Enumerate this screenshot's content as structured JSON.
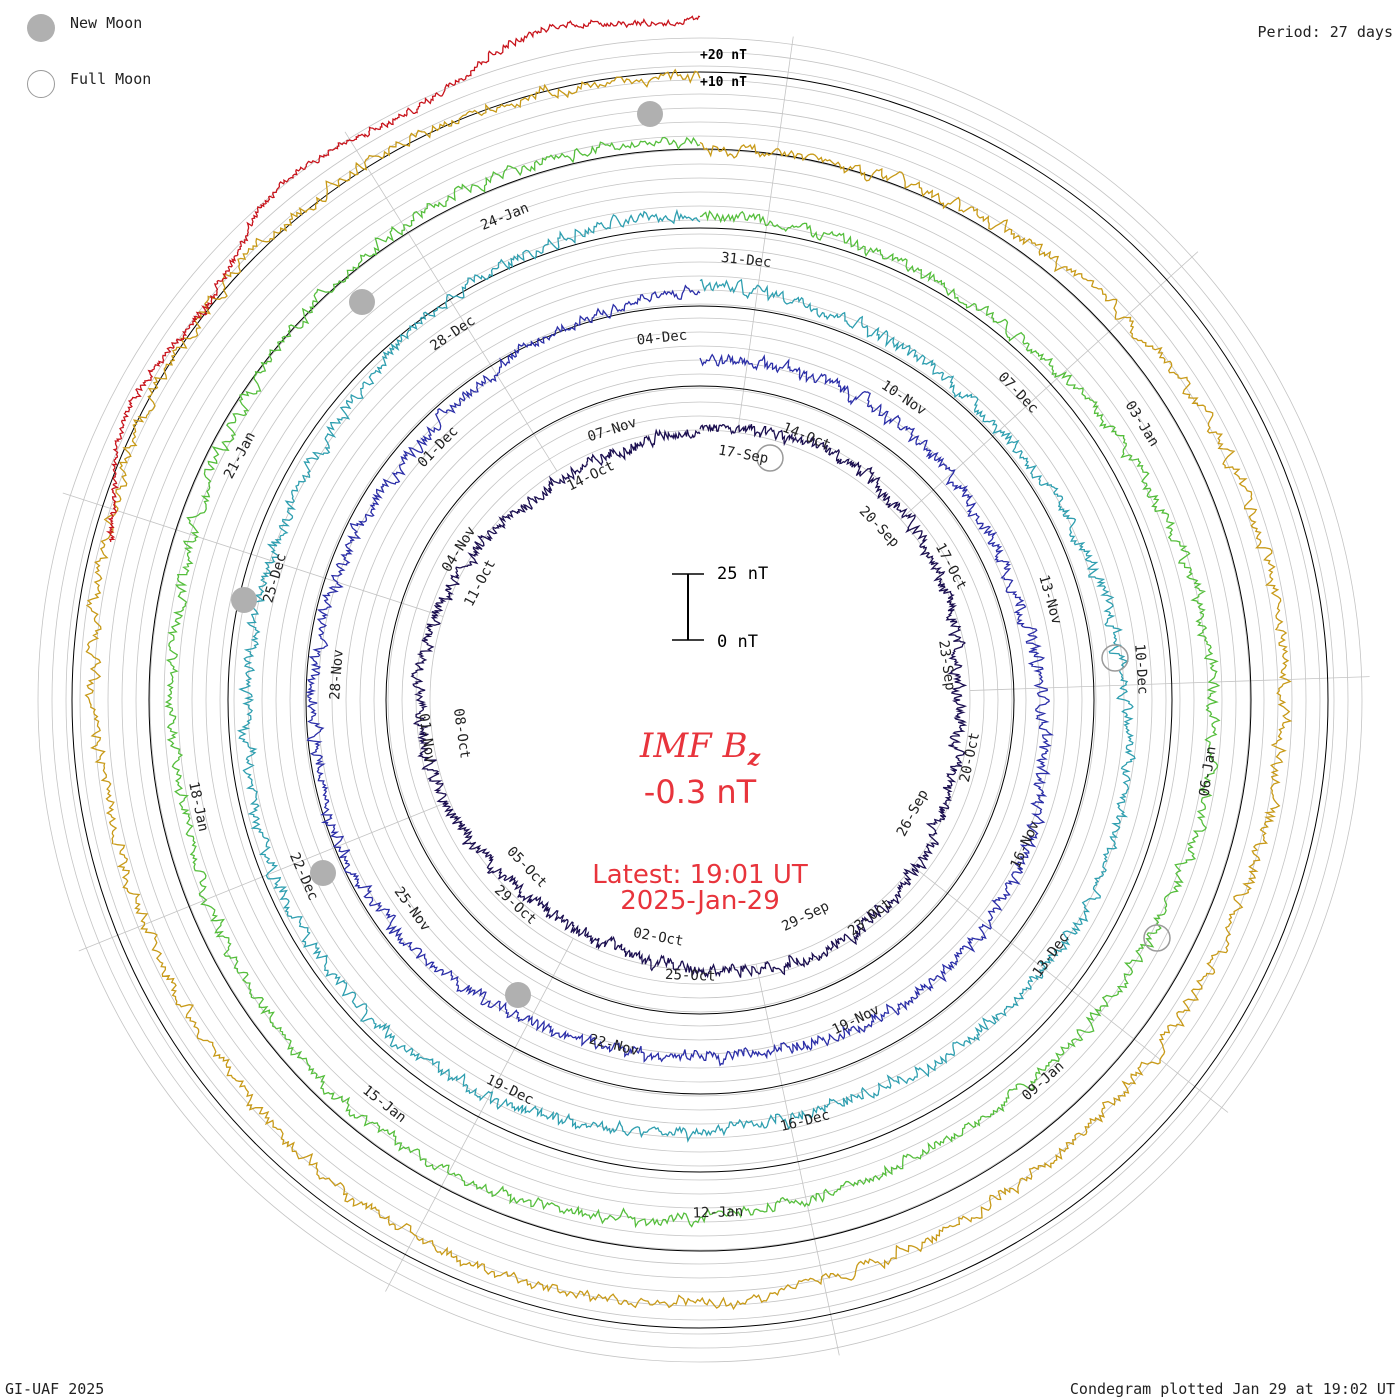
{
  "legend": {
    "new_moon_label": "New Moon",
    "full_moon_label": "Full Moon",
    "new_moon_color": "#b0b0b0"
  },
  "period_label": "Period: 27 days",
  "scale_labels": {
    "outer": "+20 nT",
    "inner": "+10 nT"
  },
  "scale_bar": {
    "top_label": "25 nT",
    "bottom_label": "0 nT",
    "top_value": 25,
    "bottom_value": 0
  },
  "center": {
    "quantity": "IMF B",
    "quantity_sub": "z",
    "value_text": "-0.3 nT",
    "value": -0.3,
    "latest_label": "Latest: 19:01 UT",
    "latest_date": "2025-Jan-29"
  },
  "footer": {
    "credit": "GI-UAF 2025",
    "plotted": "Condegram plotted Jan 29 at 19:02 UT"
  },
  "chart_data": {
    "type": "line",
    "subtype": "condegram (spiral, one rotation per 27 days)",
    "title": "IMF Bz",
    "units": "nT",
    "period_days": 27,
    "latest_value": -0.3,
    "scale": {
      "gridline_spacing": 10,
      "bar_length": 25
    },
    "rings": [
      {
        "name": "Ring 1 (innermost)",
        "color": "#1b0f50",
        "date_labels": [
          "17-Sep",
          "20-Sep",
          "23-Sep",
          "26-Sep",
          "29-Sep",
          "02-Oct",
          "05-Oct",
          "08-Oct",
          "11-Oct",
          "14-Oct"
        ]
      },
      {
        "name": "Ring 2",
        "color": "#2b2ea8",
        "date_labels": [
          "14-Oct",
          "17-Oct",
          "20-Oct",
          "23-Oct",
          "25-Oct",
          "29-Oct",
          "01-Nov",
          "04-Nov",
          "07-Nov"
        ]
      },
      {
        "name": "Ring 3",
        "color": "#2f9fb0",
        "date_labels": [
          "10-Nov",
          "13-Nov",
          "16-Nov",
          "19-Nov",
          "22-Nov",
          "25-Nov",
          "28-Nov",
          "01-Dec",
          "04-Dec"
        ]
      },
      {
        "name": "Ring 4",
        "color": "#55be3c",
        "date_labels": [
          "07-Dec",
          "10-Dec",
          "13-Dec",
          "16-Dec",
          "19-Dec",
          "22-Dec",
          "25-Dec",
          "28-Dec",
          "31-Dec"
        ]
      },
      {
        "name": "Ring 5",
        "color": "#c89a18",
        "date_labels": [
          "03-Jan",
          "06-Jan",
          "09-Jan",
          "12-Jan",
          "15-Jan",
          "18-Jan",
          "21-Jan",
          "24-Jan"
        ]
      },
      {
        "name": "Ring 6 (outermost, current)",
        "color": "#c8141c",
        "date_labels": []
      }
    ],
    "moon_phases": [
      {
        "phase": "new",
        "date_hint": "near 01-Oct"
      },
      {
        "phase": "full",
        "date_hint": "near 17-Oct"
      },
      {
        "phase": "new",
        "date_hint": "near 01-Nov"
      },
      {
        "phase": "full",
        "date_hint": "near 15-Nov"
      },
      {
        "phase": "new",
        "date_hint": "near 01-Dec"
      },
      {
        "phase": "full",
        "date_hint": "near 15-Dec"
      },
      {
        "phase": "new",
        "date_hint": "near 30-Dec"
      },
      {
        "phase": "new",
        "date_hint": "near 29-Jan"
      }
    ]
  }
}
